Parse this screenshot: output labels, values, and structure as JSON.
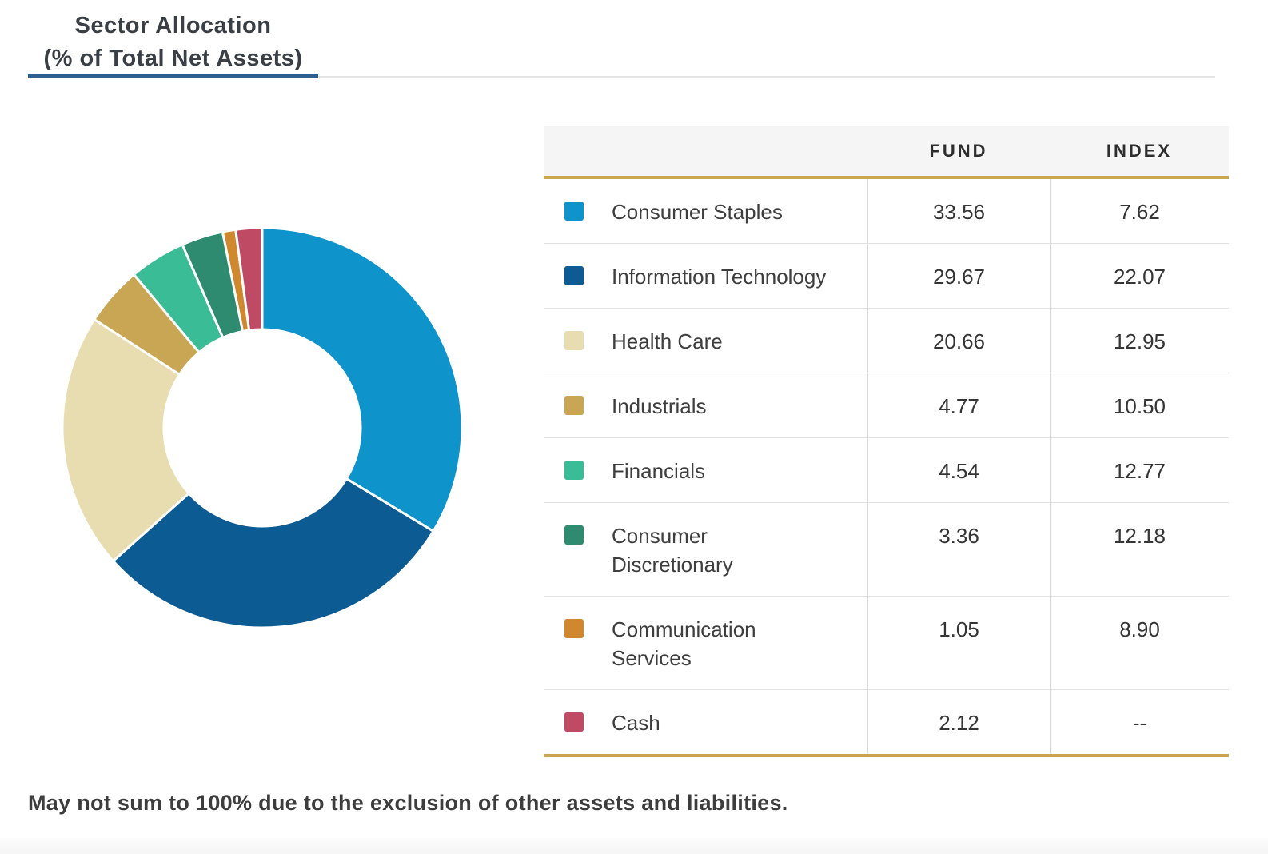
{
  "header": {
    "title_line1": "Sector Allocation",
    "title_line2": "(% of Total Net Assets)"
  },
  "table": {
    "columns": [
      "FUND",
      "INDEX"
    ],
    "rows": [
      {
        "label": "Consumer Staples",
        "color": "#0f93cb",
        "fund": "33.56",
        "index": "7.62"
      },
      {
        "label": "Information Technology",
        "color": "#0c5b92",
        "fund": "29.67",
        "index": "22.07"
      },
      {
        "label": "Health Care",
        "color": "#e7ddb1",
        "fund": "20.66",
        "index": "12.95"
      },
      {
        "label": "Industrials",
        "color": "#c8a653",
        "fund": "4.77",
        "index": "10.50"
      },
      {
        "label": "Financials",
        "color": "#3abd96",
        "fund": "4.54",
        "index": "12.77"
      },
      {
        "label": "Consumer\nDiscretionary",
        "color": "#2f8b70",
        "fund": "3.36",
        "index": "12.18"
      },
      {
        "label": "Communication\nServices",
        "color": "#d0882f",
        "fund": "1.05",
        "index": "8.90"
      },
      {
        "label": "Cash",
        "color": "#bf4a64",
        "fund": "2.12",
        "index": "--"
      }
    ]
  },
  "footnote": "May not sum to 100% due to the exclusion of other assets and liabilities.",
  "chart_data": {
    "type": "pie",
    "subtype": "donut",
    "title": "Sector Allocation (% of Total Net Assets)",
    "categories": [
      "Consumer Staples",
      "Information Technology",
      "Health Care",
      "Industrials",
      "Financials",
      "Consumer Discretionary",
      "Communication Services",
      "Cash"
    ],
    "series": [
      {
        "name": "FUND",
        "values": [
          33.56,
          29.67,
          20.66,
          4.77,
          4.54,
          3.36,
          1.05,
          2.12
        ]
      },
      {
        "name": "INDEX",
        "values": [
          7.62,
          22.07,
          12.95,
          10.5,
          12.77,
          12.18,
          8.9,
          null
        ]
      }
    ],
    "donut_series": "FUND",
    "colors": [
      "#0f93cb",
      "#0c5b92",
      "#e7ddb1",
      "#c8a653",
      "#3abd96",
      "#2f8b70",
      "#d0882f",
      "#bf4a64"
    ],
    "start_angle_deg": 0,
    "direction": "clockwise",
    "legend_position": "table-right",
    "accent_colors": {
      "gold_rule": "#c8a750",
      "title_underline_blue": "#2d5f92"
    }
  }
}
